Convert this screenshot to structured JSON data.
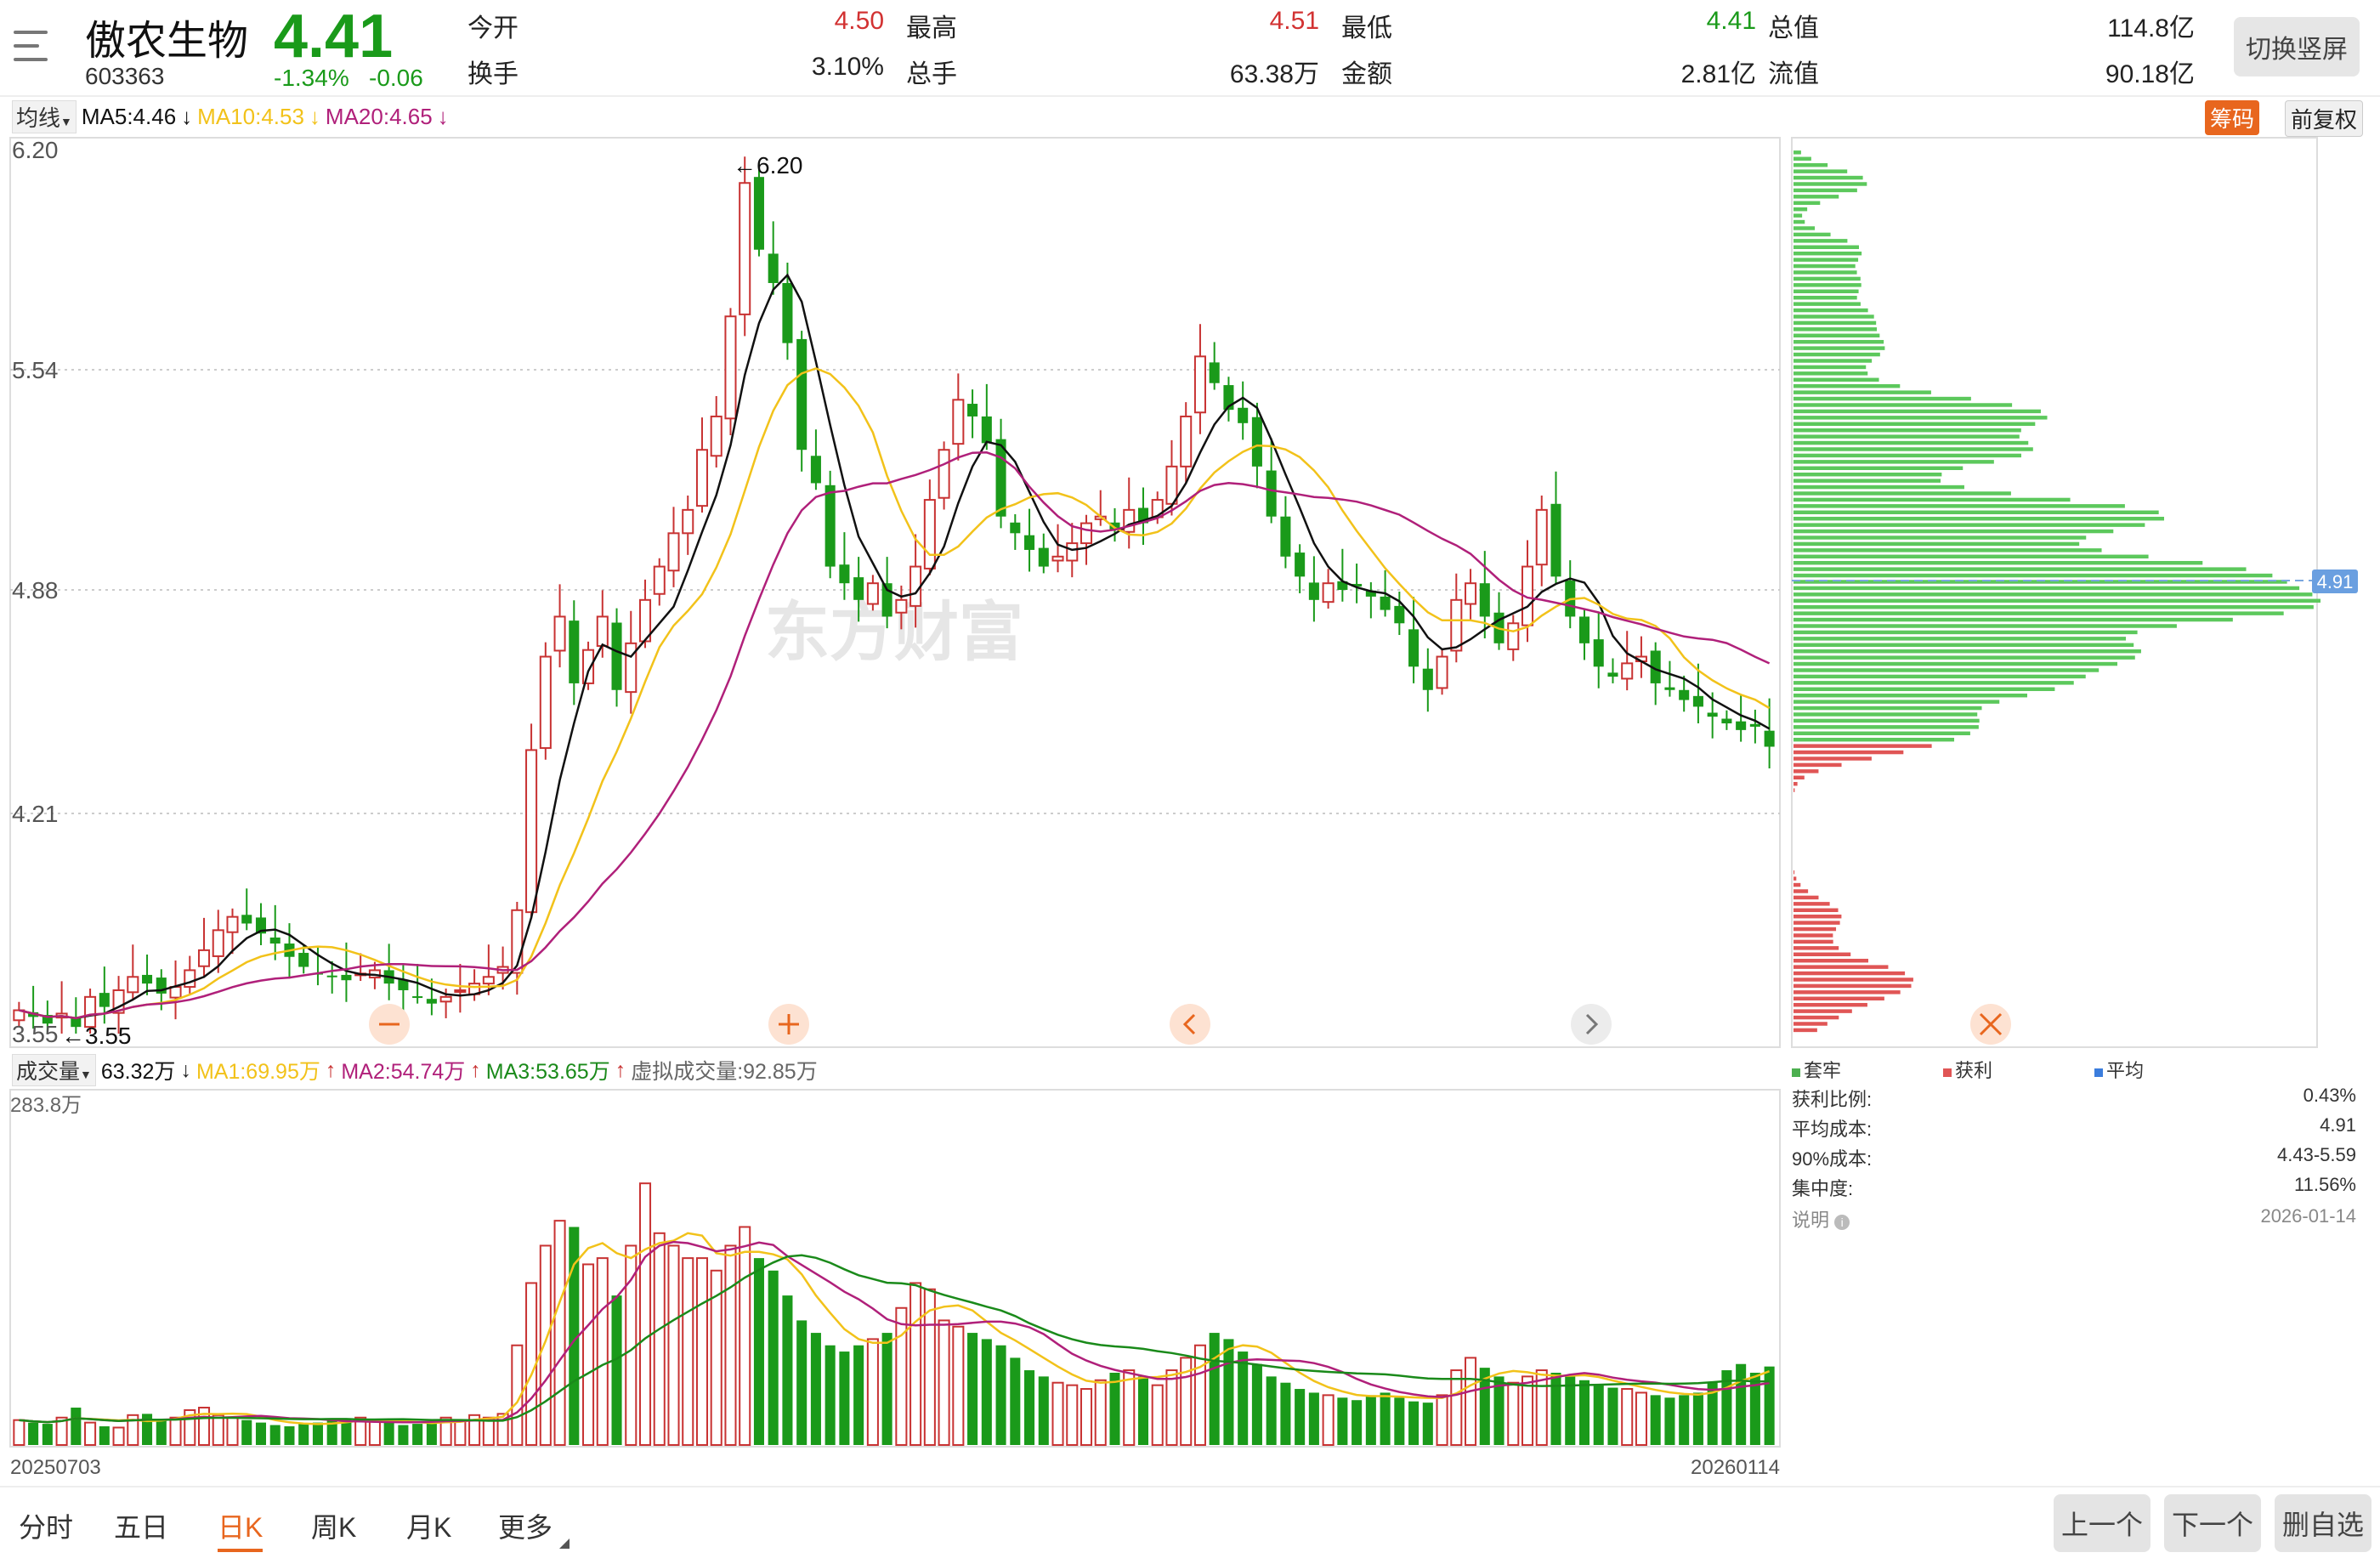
{
  "header": {
    "name": "傲农生物",
    "code": "603363",
    "price": "4.41",
    "change_pct": "-1.34%",
    "change_abs": "-0.06",
    "switch_button": "切换竖屏",
    "quotes": [
      {
        "label": "今开",
        "value": "4.50",
        "color": "red"
      },
      {
        "label": "最高",
        "value": "4.51",
        "color": "red"
      },
      {
        "label": "最低",
        "value": "4.41",
        "color": "green"
      },
      {
        "label": "总值",
        "value": "114.8亿",
        "color": "black"
      },
      {
        "label": "换手",
        "value": "3.10%",
        "color": "black"
      },
      {
        "label": "总手",
        "value": "63.38万",
        "color": "black"
      },
      {
        "label": "金额",
        "value": "2.81亿",
        "color": "black"
      },
      {
        "label": "流值",
        "value": "90.18亿",
        "color": "black"
      }
    ]
  },
  "ma_bar": {
    "selector": "均线",
    "ma5": "MA5:4.46",
    "ma10": "MA10:4.53",
    "ma20": "MA20:4.65",
    "chip_tag": "筹码",
    "adjust_tag": "前复权"
  },
  "price_axis": [
    "6.20",
    "5.54",
    "4.88",
    "4.21",
    "3.55"
  ],
  "annotations": {
    "high": "←6.20",
    "low": "←3.55"
  },
  "watermark": "东方财富",
  "chip_panel": {
    "avg_tag": "4.91",
    "legend": [
      {
        "label": "套牢",
        "color": "#4caf50"
      },
      {
        "label": "获利",
        "color": "#e05555"
      },
      {
        "label": "平均",
        "color": "#3b7ddd"
      }
    ],
    "stats": [
      {
        "label": "获利比例:",
        "value": "0.43%"
      },
      {
        "label": "平均成本:",
        "value": "4.91"
      },
      {
        "label": "90%成本:",
        "value": "4.43-5.59"
      },
      {
        "label": "集中度:",
        "value": "11.56%"
      }
    ],
    "note_label": "说明",
    "note_date": "2026-01-14"
  },
  "volume_bar": {
    "selector": "成交量",
    "vol": "63.32万",
    "ma1": "MA1:69.95万",
    "ma2": "MA2:54.74万",
    "ma3": "MA3:53.65万",
    "virtual": "虚拟成交量:92.85万",
    "max_label": "283.8万"
  },
  "dates": {
    "start": "20250703",
    "end": "20260114"
  },
  "bottom_tabs": [
    "分时",
    "五日",
    "日K",
    "周K",
    "月K",
    "更多"
  ],
  "active_tab": "日K",
  "bottom_buttons": [
    "上一个",
    "下一个",
    "删自选"
  ],
  "colors": {
    "up": "#c83232",
    "down": "#1a9a1a",
    "ma5": "#111111",
    "ma10": "#f2c21a",
    "ma20": "#b0207a",
    "chip": "#5cc85c",
    "accent": "#e8661e"
  },
  "chart_data": {
    "type": "candlestick",
    "ylim": [
      3.55,
      6.2
    ],
    "volume_max_wan": 283.8,
    "closes": [
      3.62,
      3.6,
      3.58,
      3.61,
      3.57,
      3.66,
      3.63,
      3.68,
      3.72,
      3.7,
      3.67,
      3.69,
      3.74,
      3.8,
      3.86,
      3.9,
      3.88,
      3.85,
      3.82,
      3.78,
      3.75,
      3.73,
      3.72,
      3.71,
      3.73,
      3.74,
      3.7,
      3.68,
      3.66,
      3.64,
      3.66,
      3.68,
      3.7,
      3.72,
      3.75,
      3.92,
      4.4,
      4.68,
      4.8,
      4.6,
      4.7,
      4.8,
      4.58,
      4.72,
      4.85,
      4.95,
      5.05,
      5.12,
      5.3,
      5.4,
      5.7,
      6.1,
      5.9,
      5.8,
      5.62,
      5.3,
      5.2,
      4.95,
      4.9,
      4.85,
      4.9,
      4.8,
      4.85,
      4.95,
      5.15,
      5.3,
      5.45,
      5.4,
      5.32,
      5.1,
      5.05,
      5.0,
      4.95,
      4.98,
      5.02,
      5.08,
      5.1,
      5.06,
      5.12,
      5.08,
      5.15,
      5.25,
      5.4,
      5.58,
      5.5,
      5.42,
      5.38,
      5.25,
      5.1,
      4.98,
      4.92,
      4.85,
      4.9,
      4.88,
      4.89,
      4.86,
      4.82,
      4.78,
      4.65,
      4.58,
      4.68,
      4.85,
      4.9,
      4.8,
      4.72,
      4.78,
      4.95,
      5.12,
      4.92,
      4.8,
      4.72,
      4.65,
      4.62,
      4.66,
      4.68,
      4.6,
      4.58,
      4.55,
      4.53,
      4.5,
      4.48,
      4.46,
      4.47,
      4.41
    ],
    "volumes_wan": [
      20,
      18,
      17,
      22,
      30,
      18,
      15,
      14,
      24,
      25,
      20,
      22,
      28,
      30,
      24,
      22,
      20,
      18,
      16,
      15,
      17,
      18,
      20,
      21,
      22,
      19,
      18,
      16,
      17,
      18,
      22,
      20,
      24,
      22,
      25,
      80,
      130,
      160,
      180,
      175,
      145,
      150,
      120,
      160,
      210,
      170,
      160,
      150,
      150,
      140,
      160,
      175,
      150,
      140,
      120,
      100,
      90,
      80,
      75,
      80,
      85,
      90,
      110,
      130,
      125,
      100,
      95,
      90,
      85,
      80,
      70,
      60,
      55,
      50,
      48,
      45,
      52,
      58,
      60,
      55,
      48,
      60,
      70,
      80,
      90,
      85,
      75,
      65,
      55,
      50,
      45,
      42,
      40,
      38,
      36,
      40,
      42,
      38,
      35,
      34,
      40,
      60,
      70,
      62,
      55,
      50,
      55,
      60,
      58,
      55,
      52,
      48,
      46,
      45,
      42,
      40,
      38,
      40,
      42,
      50,
      60,
      65,
      58,
      63
    ]
  }
}
